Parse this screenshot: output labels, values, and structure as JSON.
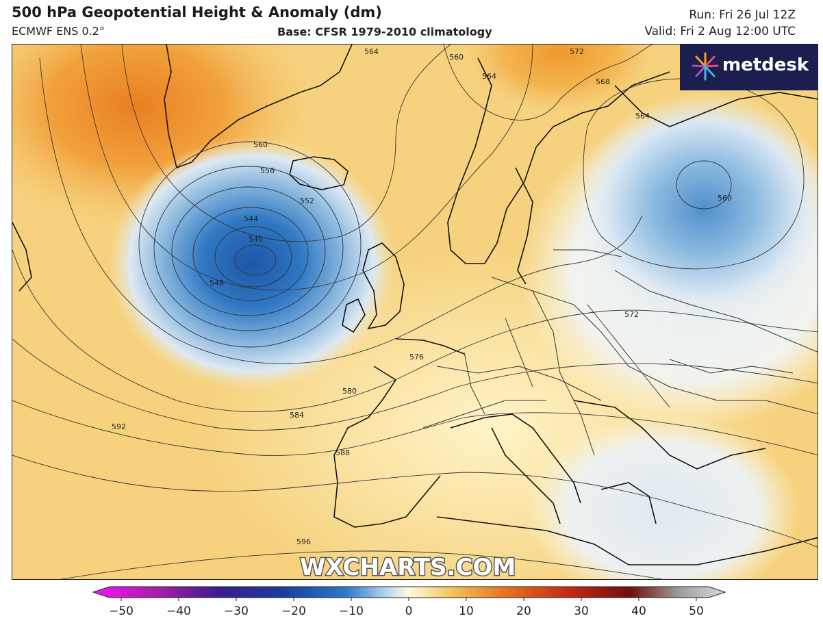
{
  "header": {
    "title": "500 hPa Geopotential Height & Anomaly (dm)",
    "model": "ECMWF ENS 0.2°",
    "base": "Base: CFSR 1979-2010 climatology",
    "run": "Run: Fri 26 Jul 12Z",
    "valid": "Valid: Fri 2 Aug 12:00 UTC"
  },
  "logo": {
    "name": "metdesk",
    "colors": [
      "#e94e77",
      "#f7a325",
      "#9b59b6",
      "#3fb8e8"
    ]
  },
  "watermark": "WXCHARTS.COM",
  "map": {
    "contour_labels": [
      "540",
      "544",
      "548",
      "552",
      "556",
      "560",
      "560",
      "564",
      "564",
      "572",
      "576",
      "580",
      "584",
      "588",
      "592",
      "596",
      "560",
      "568",
      "572",
      "564"
    ],
    "anomaly_colors": {
      "positive_strong": "#f09a2c",
      "positive_mid": "#f5c26a",
      "positive_weak": "#fbe6a8",
      "neutral": "#fffbe8",
      "negative_weak": "#e4edf5",
      "negative_mid": "#8fbbe0",
      "negative_strong": "#1d5fb0"
    }
  },
  "colorbar": {
    "ticks": [
      "−50",
      "−40",
      "−30",
      "−20",
      "−10",
      "0",
      "10",
      "20",
      "30",
      "40",
      "50"
    ],
    "stops": [
      "#f516f5",
      "#a81ea8",
      "#3b1c8c",
      "#1a3d9c",
      "#2d78c9",
      "#c6dcef",
      "#fff9dc",
      "#f2c15a",
      "#e8741c",
      "#c62a14",
      "#6e1010",
      "#a0a0a0",
      "#d8d8d8"
    ]
  }
}
